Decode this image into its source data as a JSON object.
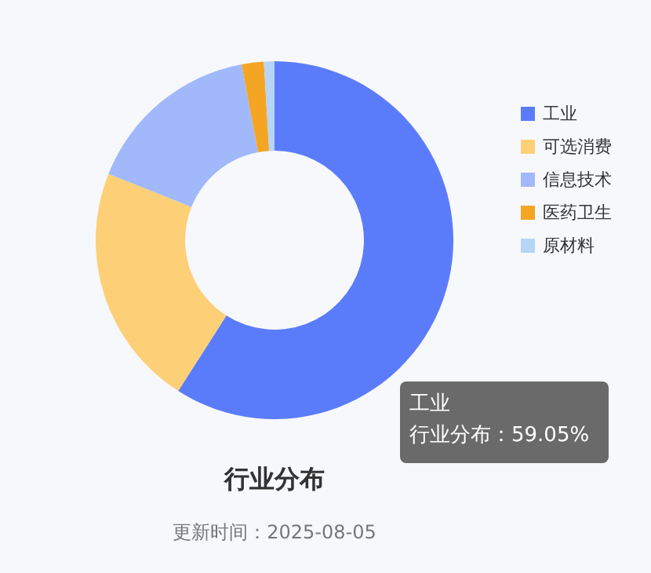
{
  "chart_data": {
    "type": "donut",
    "title": "行业分布",
    "subtitle": "更新时间：2025-08-05",
    "categories": [
      "工业",
      "可选消费",
      "信息技术",
      "医药卫生",
      "原材料"
    ],
    "values": [
      59.05,
      22,
      16,
      2,
      0.95
    ],
    "colors": [
      "#5b7cfa",
      "#fdd077",
      "#a1b8fb",
      "#f5a524",
      "#b6d5f7"
    ],
    "annotations": [
      "工业",
      "行业分布：59.05%"
    ],
    "legend": "right"
  }
}
